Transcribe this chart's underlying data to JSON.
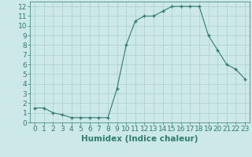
{
  "x": [
    0,
    1,
    2,
    3,
    4,
    5,
    6,
    7,
    8,
    9,
    10,
    11,
    12,
    13,
    14,
    15,
    16,
    17,
    18,
    19,
    20,
    21,
    22,
    23
  ],
  "y": [
    1.5,
    1.5,
    1.0,
    0.8,
    0.5,
    0.5,
    0.5,
    0.5,
    0.5,
    3.5,
    8.0,
    10.5,
    11.0,
    11.0,
    11.5,
    12.0,
    12.0,
    12.0,
    12.0,
    9.0,
    7.5,
    6.0,
    5.5,
    4.5
  ],
  "xlabel": "Humidex (Indice chaleur)",
  "xlim": [
    -0.5,
    23.5
  ],
  "ylim": [
    0,
    12.5
  ],
  "yticks": [
    0,
    1,
    2,
    3,
    4,
    5,
    6,
    7,
    8,
    9,
    10,
    11,
    12
  ],
  "xticks": [
    0,
    1,
    2,
    3,
    4,
    5,
    6,
    7,
    8,
    9,
    10,
    11,
    12,
    13,
    14,
    15,
    16,
    17,
    18,
    19,
    20,
    21,
    22,
    23
  ],
  "line_color": "#2e7d6e",
  "marker_color": "#2e7d6e",
  "bg_color": "#cce8e8",
  "grid_color": "#aacfcf",
  "tick_color": "#2e7d6e",
  "label_color": "#2e7d6e",
  "xlabel_fontsize": 7.5,
  "tick_fontsize": 6.5
}
